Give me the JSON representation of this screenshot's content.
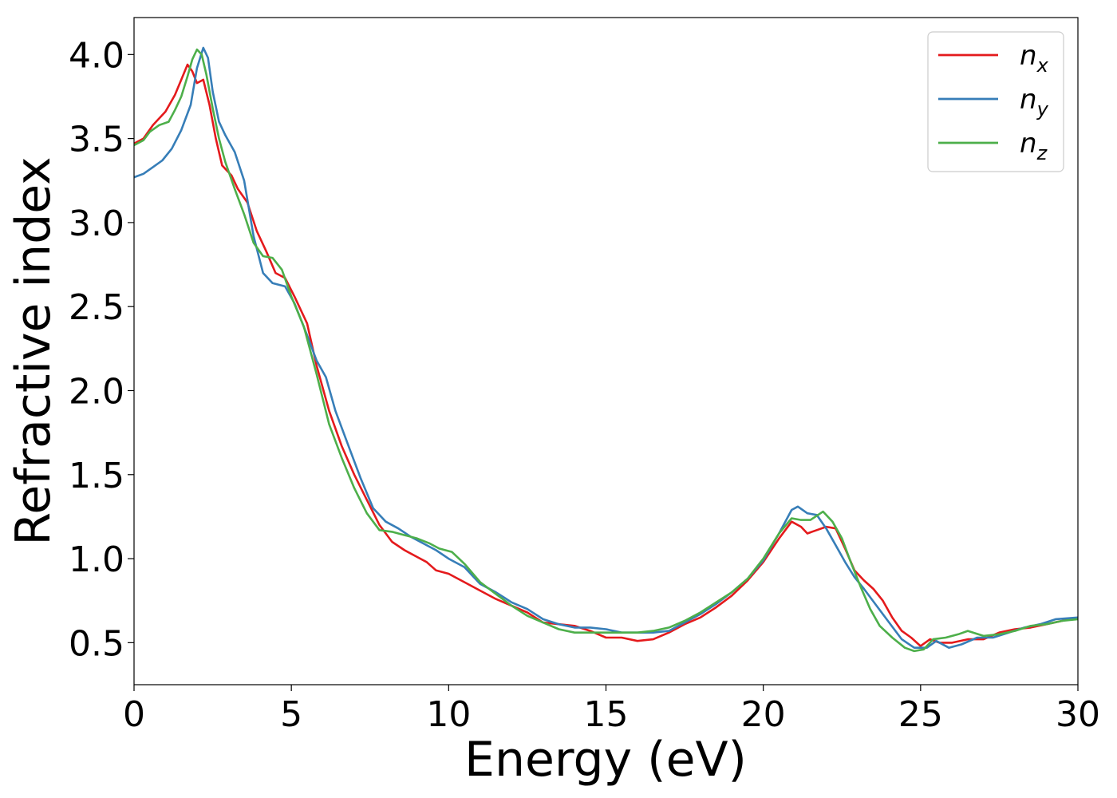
{
  "chart_data": {
    "type": "line",
    "title": "",
    "xlabel": "Energy (eV)",
    "ylabel": "Refractive index",
    "xlim": [
      0,
      30
    ],
    "ylim": [
      0.25,
      4.22
    ],
    "xticks": [
      0,
      5,
      10,
      15,
      20,
      25,
      30
    ],
    "xtick_labels": [
      "0",
      "5",
      "10",
      "15",
      "20",
      "25",
      "30"
    ],
    "yticks": [
      0.5,
      1.0,
      1.5,
      2.0,
      2.5,
      3.0,
      3.5,
      4.0
    ],
    "ytick_labels": [
      "0.5",
      "1.0",
      "1.5",
      "2.0",
      "2.5",
      "3.0",
      "3.5",
      "4.0"
    ],
    "grid": false,
    "legend_position": "top-right",
    "series": [
      {
        "base": "n",
        "sub": "x",
        "color": "#e41a1c",
        "points": [
          [
            0,
            3.47
          ],
          [
            0.3,
            3.5
          ],
          [
            0.6,
            3.58
          ],
          [
            1.0,
            3.66
          ],
          [
            1.3,
            3.76
          ],
          [
            1.5,
            3.85
          ],
          [
            1.7,
            3.94
          ],
          [
            1.85,
            3.9
          ],
          [
            2.0,
            3.83
          ],
          [
            2.2,
            3.85
          ],
          [
            2.4,
            3.7
          ],
          [
            2.6,
            3.5
          ],
          [
            2.8,
            3.34
          ],
          [
            3.1,
            3.28
          ],
          [
            3.3,
            3.2
          ],
          [
            3.6,
            3.12
          ],
          [
            3.9,
            2.95
          ],
          [
            4.2,
            2.83
          ],
          [
            4.5,
            2.7
          ],
          [
            4.8,
            2.67
          ],
          [
            5.1,
            2.56
          ],
          [
            5.5,
            2.4
          ],
          [
            5.8,
            2.15
          ],
          [
            6.2,
            1.88
          ],
          [
            6.6,
            1.67
          ],
          [
            7.0,
            1.5
          ],
          [
            7.4,
            1.35
          ],
          [
            7.8,
            1.2
          ],
          [
            8.2,
            1.1
          ],
          [
            8.6,
            1.05
          ],
          [
            9.0,
            1.01
          ],
          [
            9.3,
            0.98
          ],
          [
            9.6,
            0.93
          ],
          [
            10.0,
            0.91
          ],
          [
            10.5,
            0.86
          ],
          [
            11.0,
            0.81
          ],
          [
            11.5,
            0.76
          ],
          [
            12.0,
            0.72
          ],
          [
            12.5,
            0.68
          ],
          [
            13.0,
            0.62
          ],
          [
            13.5,
            0.61
          ],
          [
            14.0,
            0.6
          ],
          [
            14.5,
            0.57
          ],
          [
            15.0,
            0.53
          ],
          [
            15.5,
            0.53
          ],
          [
            16.0,
            0.51
          ],
          [
            16.5,
            0.52
          ],
          [
            17.0,
            0.56
          ],
          [
            17.5,
            0.61
          ],
          [
            18.0,
            0.65
          ],
          [
            18.5,
            0.71
          ],
          [
            19.0,
            0.78
          ],
          [
            19.5,
            0.87
          ],
          [
            20.0,
            0.98
          ],
          [
            20.5,
            1.12
          ],
          [
            20.9,
            1.22
          ],
          [
            21.2,
            1.19
          ],
          [
            21.4,
            1.15
          ],
          [
            21.7,
            1.17
          ],
          [
            22.0,
            1.19
          ],
          [
            22.3,
            1.18
          ],
          [
            22.6,
            1.06
          ],
          [
            22.9,
            0.93
          ],
          [
            23.2,
            0.87
          ],
          [
            23.5,
            0.82
          ],
          [
            23.8,
            0.75
          ],
          [
            24.1,
            0.65
          ],
          [
            24.4,
            0.57
          ],
          [
            24.7,
            0.53
          ],
          [
            25.0,
            0.48
          ],
          [
            25.3,
            0.52
          ],
          [
            25.6,
            0.5
          ],
          [
            26.0,
            0.5
          ],
          [
            26.5,
            0.52
          ],
          [
            27.0,
            0.52
          ],
          [
            27.5,
            0.56
          ],
          [
            28.0,
            0.58
          ],
          [
            28.5,
            0.59
          ],
          [
            29.0,
            0.61
          ],
          [
            29.5,
            0.63
          ],
          [
            30.0,
            0.65
          ]
        ]
      },
      {
        "base": "n",
        "sub": "y",
        "color": "#377eb8",
        "points": [
          [
            0,
            3.27
          ],
          [
            0.3,
            3.29
          ],
          [
            0.6,
            3.33
          ],
          [
            0.9,
            3.37
          ],
          [
            1.2,
            3.44
          ],
          [
            1.5,
            3.55
          ],
          [
            1.8,
            3.7
          ],
          [
            2.0,
            3.92
          ],
          [
            2.2,
            4.04
          ],
          [
            2.35,
            3.98
          ],
          [
            2.5,
            3.78
          ],
          [
            2.7,
            3.6
          ],
          [
            2.9,
            3.52
          ],
          [
            3.2,
            3.42
          ],
          [
            3.5,
            3.25
          ],
          [
            3.8,
            2.92
          ],
          [
            4.1,
            2.7
          ],
          [
            4.4,
            2.64
          ],
          [
            4.8,
            2.62
          ],
          [
            5.1,
            2.52
          ],
          [
            5.5,
            2.33
          ],
          [
            5.8,
            2.18
          ],
          [
            6.1,
            2.08
          ],
          [
            6.4,
            1.88
          ],
          [
            6.8,
            1.68
          ],
          [
            7.2,
            1.48
          ],
          [
            7.6,
            1.3
          ],
          [
            8.0,
            1.22
          ],
          [
            8.4,
            1.18
          ],
          [
            8.8,
            1.13
          ],
          [
            9.2,
            1.09
          ],
          [
            9.6,
            1.05
          ],
          [
            10.0,
            1.0
          ],
          [
            10.5,
            0.95
          ],
          [
            11.0,
            0.85
          ],
          [
            11.5,
            0.8
          ],
          [
            12.0,
            0.74
          ],
          [
            12.5,
            0.7
          ],
          [
            13.0,
            0.64
          ],
          [
            13.5,
            0.61
          ],
          [
            14.0,
            0.59
          ],
          [
            14.5,
            0.59
          ],
          [
            15.0,
            0.58
          ],
          [
            15.5,
            0.56
          ],
          [
            16.0,
            0.56
          ],
          [
            16.5,
            0.56
          ],
          [
            17.0,
            0.57
          ],
          [
            17.5,
            0.62
          ],
          [
            18.0,
            0.67
          ],
          [
            18.5,
            0.73
          ],
          [
            19.0,
            0.8
          ],
          [
            19.5,
            0.88
          ],
          [
            20.0,
            0.99
          ],
          [
            20.5,
            1.15
          ],
          [
            20.9,
            1.29
          ],
          [
            21.1,
            1.31
          ],
          [
            21.4,
            1.27
          ],
          [
            21.7,
            1.26
          ],
          [
            22.0,
            1.18
          ],
          [
            22.3,
            1.08
          ],
          [
            22.6,
            0.98
          ],
          [
            22.9,
            0.89
          ],
          [
            23.2,
            0.82
          ],
          [
            23.6,
            0.72
          ],
          [
            24.0,
            0.62
          ],
          [
            24.4,
            0.52
          ],
          [
            24.8,
            0.47
          ],
          [
            25.2,
            0.47
          ],
          [
            25.5,
            0.51
          ],
          [
            25.9,
            0.47
          ],
          [
            26.3,
            0.49
          ],
          [
            26.8,
            0.53
          ],
          [
            27.3,
            0.53
          ],
          [
            27.8,
            0.56
          ],
          [
            28.3,
            0.59
          ],
          [
            28.8,
            0.61
          ],
          [
            29.3,
            0.64
          ],
          [
            30.0,
            0.65
          ]
        ]
      },
      {
        "base": "n",
        "sub": "z",
        "color": "#4daf4a",
        "points": [
          [
            0,
            3.46
          ],
          [
            0.3,
            3.49
          ],
          [
            0.5,
            3.54
          ],
          [
            0.8,
            3.58
          ],
          [
            1.1,
            3.6
          ],
          [
            1.3,
            3.67
          ],
          [
            1.5,
            3.75
          ],
          [
            1.7,
            3.87
          ],
          [
            1.85,
            3.97
          ],
          [
            2.0,
            4.03
          ],
          [
            2.15,
            4.0
          ],
          [
            2.3,
            3.88
          ],
          [
            2.5,
            3.68
          ],
          [
            2.7,
            3.5
          ],
          [
            2.9,
            3.36
          ],
          [
            3.2,
            3.2
          ],
          [
            3.5,
            3.05
          ],
          [
            3.8,
            2.88
          ],
          [
            4.1,
            2.8
          ],
          [
            4.4,
            2.79
          ],
          [
            4.7,
            2.72
          ],
          [
            5.0,
            2.56
          ],
          [
            5.4,
            2.38
          ],
          [
            5.8,
            2.1
          ],
          [
            6.2,
            1.8
          ],
          [
            6.6,
            1.6
          ],
          [
            7.0,
            1.42
          ],
          [
            7.4,
            1.27
          ],
          [
            7.8,
            1.17
          ],
          [
            8.2,
            1.16
          ],
          [
            8.6,
            1.14
          ],
          [
            9.0,
            1.12
          ],
          [
            9.4,
            1.09
          ],
          [
            9.7,
            1.06
          ],
          [
            10.1,
            1.04
          ],
          [
            10.5,
            0.97
          ],
          [
            11.0,
            0.86
          ],
          [
            11.5,
            0.79
          ],
          [
            12.0,
            0.72
          ],
          [
            12.5,
            0.66
          ],
          [
            13.0,
            0.62
          ],
          [
            13.5,
            0.58
          ],
          [
            14.0,
            0.56
          ],
          [
            14.5,
            0.56
          ],
          [
            15.0,
            0.56
          ],
          [
            15.5,
            0.56
          ],
          [
            16.0,
            0.56
          ],
          [
            16.5,
            0.57
          ],
          [
            17.0,
            0.59
          ],
          [
            17.5,
            0.63
          ],
          [
            18.0,
            0.68
          ],
          [
            18.5,
            0.74
          ],
          [
            19.0,
            0.8
          ],
          [
            19.5,
            0.88
          ],
          [
            20.0,
            1.0
          ],
          [
            20.5,
            1.15
          ],
          [
            20.9,
            1.24
          ],
          [
            21.2,
            1.23
          ],
          [
            21.5,
            1.23
          ],
          [
            21.9,
            1.28
          ],
          [
            22.2,
            1.22
          ],
          [
            22.5,
            1.12
          ],
          [
            22.8,
            0.97
          ],
          [
            23.1,
            0.83
          ],
          [
            23.4,
            0.7
          ],
          [
            23.7,
            0.6
          ],
          [
            24.1,
            0.53
          ],
          [
            24.5,
            0.47
          ],
          [
            24.8,
            0.45
          ],
          [
            25.1,
            0.46
          ],
          [
            25.4,
            0.52
          ],
          [
            25.8,
            0.53
          ],
          [
            26.2,
            0.55
          ],
          [
            26.5,
            0.57
          ],
          [
            27.0,
            0.54
          ],
          [
            27.5,
            0.55
          ],
          [
            28.0,
            0.57
          ],
          [
            28.5,
            0.6
          ],
          [
            29.0,
            0.61
          ],
          [
            29.5,
            0.63
          ],
          [
            30.0,
            0.64
          ]
        ]
      }
    ]
  }
}
